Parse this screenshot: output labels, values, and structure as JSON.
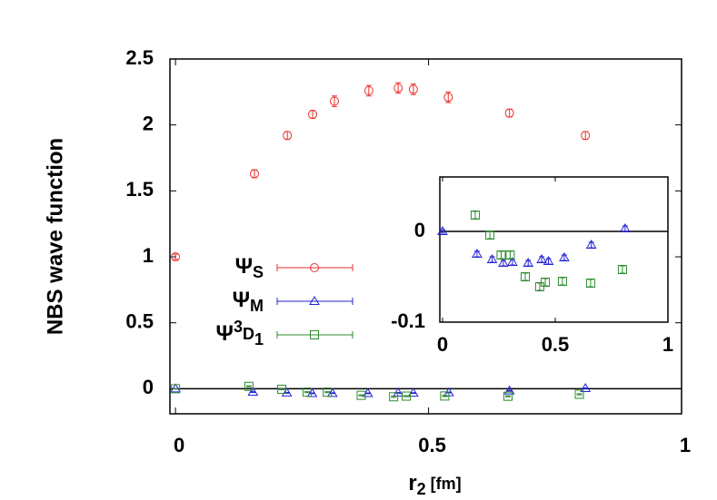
{
  "chart_data": [
    {
      "type": "scatter",
      "xlabel": "r2 [fm]",
      "ylabel": "NBS wave function",
      "xlim": [
        -0.011,
        1
      ],
      "ylim": [
        -0.19,
        2.5
      ],
      "xticks": [
        0,
        0.5,
        1
      ],
      "yticks": [
        0,
        0.5,
        1,
        1.5,
        2,
        2.5
      ],
      "series": [
        {
          "name": "ΨS",
          "color": "#e8322d",
          "marker": "circle",
          "x": [
            0,
            0.156,
            0.221,
            0.271,
            0.314,
            0.382,
            0.44,
            0.47,
            0.539,
            0.66,
            0.81
          ],
          "values": [
            1.0,
            1.63,
            1.92,
            2.08,
            2.18,
            2.26,
            2.28,
            2.27,
            2.21,
            2.09,
            1.92
          ],
          "errors": [
            0.02,
            0.03,
            0.03,
            0.03,
            0.04,
            0.04,
            0.04,
            0.04,
            0.04,
            0.03,
            0.03
          ]
        },
        {
          "name": "ΨM",
          "color": "#2323d6",
          "marker": "triangle",
          "x": [
            0,
            0.153,
            0.22,
            0.27,
            0.31,
            0.38,
            0.44,
            0.47,
            0.54,
            0.66,
            0.81
          ],
          "values": [
            0,
            -0.025,
            -0.031,
            -0.035,
            -0.034,
            -0.035,
            -0.031,
            -0.033,
            -0.029,
            -0.015,
            0.003
          ],
          "errors": [
            0.002,
            0.003,
            0.003,
            0.003,
            0.003,
            0.003,
            0.003,
            0.003,
            0.003,
            0.003,
            0.003
          ]
        },
        {
          "name": "Ψ3D1",
          "color": "#2e8b2e",
          "marker": "square",
          "x": [
            0,
            0.145,
            0.21,
            0.26,
            0.3,
            0.367,
            0.431,
            0.456,
            0.532,
            0.657,
            0.798
          ],
          "values": [
            0,
            0.018,
            -0.004,
            -0.026,
            -0.026,
            -0.05,
            -0.061,
            -0.056,
            -0.055,
            -0.057,
            -0.042
          ],
          "errors": [
            0.002,
            0.004,
            0.004,
            0.004,
            0.004,
            0.004,
            0.004,
            0.004,
            0.004,
            0.004,
            0.004
          ]
        }
      ]
    },
    {
      "type": "scatter",
      "xlim": [
        -0.012,
        1
      ],
      "ylim": [
        -0.1,
        0.06
      ],
      "xticks": [
        0,
        0.5,
        1
      ],
      "yticks": [
        0,
        -0.1
      ],
      "series": [
        {
          "color": "#2323d6",
          "marker": "triangle",
          "x": [
            0,
            0.153,
            0.22,
            0.27,
            0.31,
            0.38,
            0.44,
            0.47,
            0.54,
            0.66,
            0.81
          ],
          "values": [
            0,
            -0.025,
            -0.031,
            -0.035,
            -0.034,
            -0.035,
            -0.031,
            -0.033,
            -0.029,
            -0.015,
            0.003
          ],
          "errors": [
            0.002,
            0.003,
            0.003,
            0.003,
            0.003,
            0.003,
            0.003,
            0.003,
            0.003,
            0.003,
            0.003
          ]
        },
        {
          "color": "#2e8b2e",
          "marker": "square",
          "x": [
            0.145,
            0.21,
            0.26,
            0.3,
            0.367,
            0.431,
            0.456,
            0.532,
            0.657,
            0.798
          ],
          "values": [
            0.018,
            -0.004,
            -0.026,
            -0.026,
            -0.05,
            -0.061,
            -0.056,
            -0.055,
            -0.057,
            -0.042
          ],
          "errors": [
            0.004,
            0.004,
            0.004,
            0.004,
            0.004,
            0.004,
            0.004,
            0.004,
            0.004,
            0.004
          ]
        }
      ]
    }
  ]
}
